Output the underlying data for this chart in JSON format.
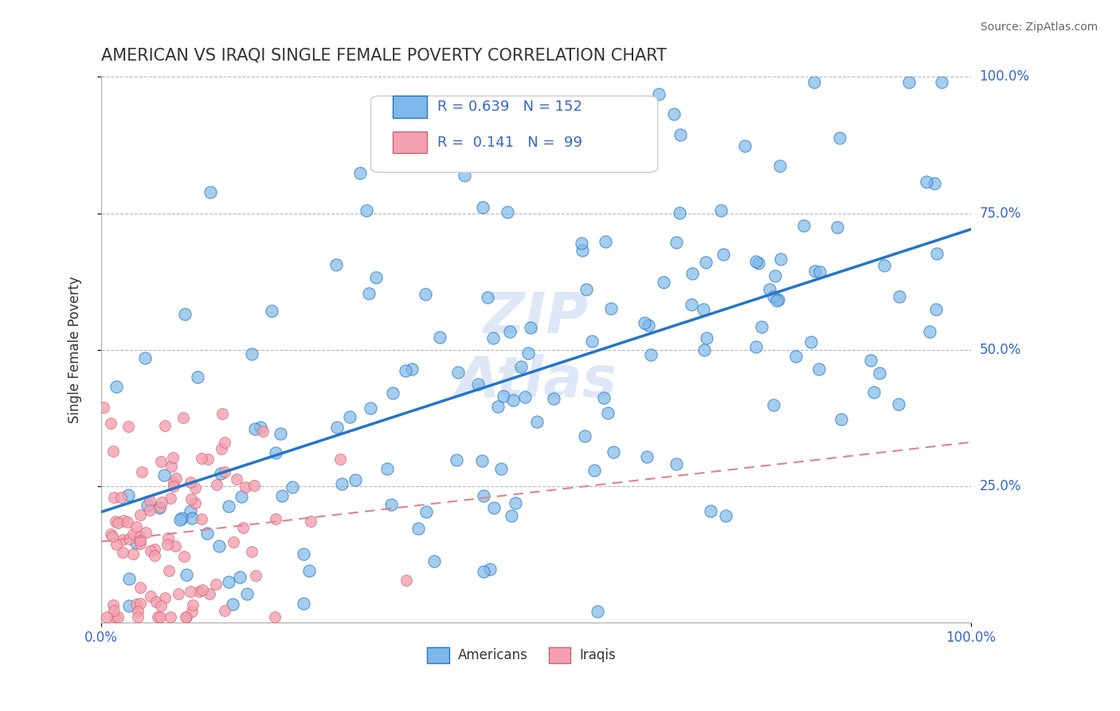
{
  "title": "AMERICAN VS IRAQI SINGLE FEMALE POVERTY CORRELATION CHART",
  "source": "Source: ZipAtlas.com",
  "ylabel": "Single Female Poverty",
  "color_american": "#7eb8e8",
  "color_iraqi": "#f4a0b0",
  "color_trend_american": "#2475c8",
  "color_trend_iraqi": "#e08090",
  "title_color": "#333333",
  "axis_label_color": "#333333",
  "tick_label_color": "#3366cc",
  "watermark_color": "#c8d8f0",
  "legend_r_american": "R = 0.639",
  "legend_n_american": "N = 152",
  "legend_r_iraqi": "R =  0.141",
  "legend_n_iraqi": "N =  99",
  "ytick_positions": [
    0.25,
    0.5,
    0.75,
    1.0
  ],
  "ytick_labels": [
    "25.0%",
    "50.0%",
    "75.0%",
    "100.0%"
  ]
}
